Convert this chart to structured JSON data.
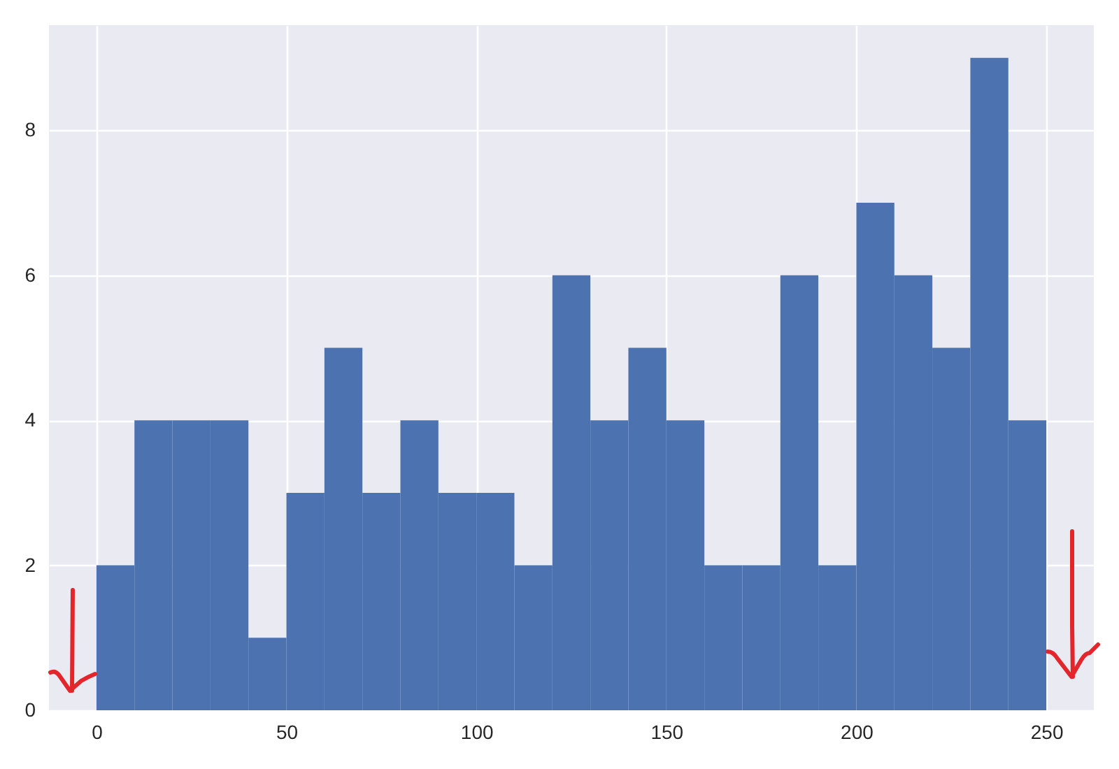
{
  "chart_data": {
    "type": "histogram",
    "bins": [
      0,
      10,
      20,
      30,
      40,
      50,
      60,
      70,
      80,
      90,
      100,
      110,
      120,
      130,
      140,
      150,
      160,
      170,
      180,
      190,
      200,
      210,
      220,
      230,
      240,
      250
    ],
    "values": [
      2,
      4,
      4,
      4,
      1,
      3,
      5,
      3,
      4,
      3,
      3,
      2,
      6,
      4,
      5,
      4,
      2,
      2,
      6,
      2,
      7,
      6,
      5,
      9,
      4
    ],
    "color": "#4c72b0",
    "xlim": [
      -12.5,
      262.5
    ],
    "ylim": [
      0,
      9.45
    ],
    "xticks": [
      0,
      50,
      100,
      150,
      200,
      250
    ],
    "yticks": [
      0,
      2,
      4,
      6,
      8
    ],
    "grid": true
  }
}
